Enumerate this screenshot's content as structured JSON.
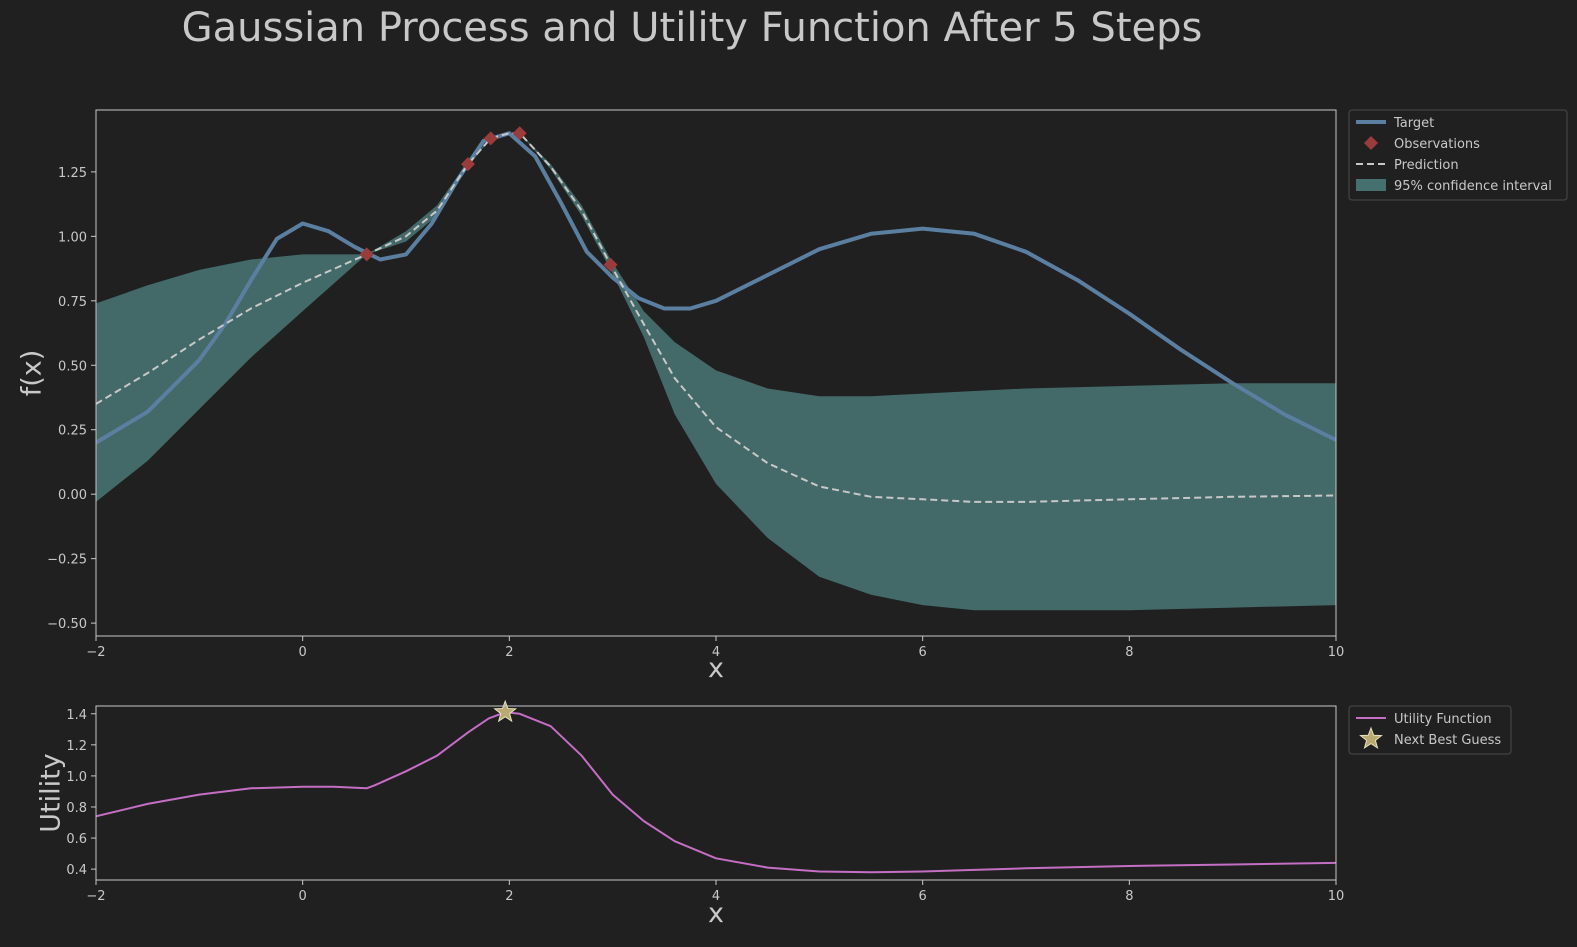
{
  "title": "Gaussian Process and Utility Function After 5 Steps",
  "colors": {
    "background": "#202020",
    "axes_edge": "#c8c8c8",
    "text": "#c8c8c8",
    "target": "#5b7fa0",
    "observation": "#9b3c3c",
    "prediction": "#c8c8c8",
    "confidence": "#467070",
    "utility": "#c46ec4",
    "next_guess": "#b8aa70"
  },
  "chart_data": [
    {
      "type": "line",
      "xlabel": "x",
      "ylabel": "f(x)",
      "xlim": [
        -2,
        10
      ],
      "ylim": [
        -0.55,
        1.49
      ],
      "xticks": [
        -2,
        0,
        2,
        4,
        6,
        8,
        10
      ],
      "yticks": [
        -0.5,
        -0.25,
        0.0,
        0.25,
        0.5,
        0.75,
        1.0,
        1.25
      ],
      "ytick_labels": [
        "−0.50",
        "−0.25",
        "0.00",
        "0.25",
        "0.50",
        "0.75",
        "1.00",
        "1.25"
      ],
      "legend_position": "outside-top-right",
      "series": [
        {
          "name": "Target",
          "kind": "line",
          "x": [
            -2,
            -1.5,
            -1,
            -0.75,
            -0.5,
            -0.25,
            0,
            0.25,
            0.5,
            0.75,
            1.0,
            1.25,
            1.5,
            1.75,
            2.0,
            2.25,
            2.5,
            2.75,
            3.0,
            3.25,
            3.5,
            3.75,
            4.0,
            4.5,
            5.0,
            5.5,
            6.0,
            6.5,
            7.0,
            7.5,
            8.0,
            8.5,
            9.0,
            9.5,
            10.0
          ],
          "y": [
            0.2,
            0.32,
            0.52,
            0.66,
            0.83,
            0.99,
            1.05,
            1.02,
            0.96,
            0.91,
            0.93,
            1.05,
            1.22,
            1.37,
            1.4,
            1.31,
            1.13,
            0.94,
            0.84,
            0.76,
            0.72,
            0.72,
            0.75,
            0.85,
            0.95,
            1.01,
            1.03,
            1.01,
            0.94,
            0.83,
            0.7,
            0.56,
            0.43,
            0.31,
            0.21
          ]
        },
        {
          "name": "Observations",
          "kind": "marker",
          "x": [
            0.62,
            1.6,
            1.82,
            2.1,
            2.98
          ],
          "y": [
            0.93,
            1.28,
            1.38,
            1.4,
            0.89
          ]
        },
        {
          "name": "Prediction",
          "kind": "dashed",
          "x": [
            -2,
            -1.5,
            -1,
            -0.5,
            0,
            0.62,
            1.0,
            1.3,
            1.6,
            1.82,
            2.0,
            2.1,
            2.4,
            2.7,
            2.98,
            3.3,
            3.6,
            4.0,
            4.5,
            5.0,
            5.5,
            6.0,
            6.5,
            7.0,
            8.0,
            9.0,
            10.0
          ],
          "y": [
            0.35,
            0.47,
            0.6,
            0.72,
            0.82,
            0.93,
            1.0,
            1.1,
            1.28,
            1.38,
            1.4,
            1.4,
            1.27,
            1.1,
            0.89,
            0.66,
            0.45,
            0.26,
            0.12,
            0.03,
            -0.01,
            -0.02,
            -0.03,
            -0.03,
            -0.02,
            -0.01,
            -0.005
          ]
        },
        {
          "name": "95% confidence interval",
          "kind": "band",
          "x": [
            -2,
            -1.5,
            -1,
            -0.5,
            0,
            0.62,
            1.0,
            1.3,
            1.6,
            1.82,
            2.0,
            2.1,
            2.4,
            2.7,
            2.98,
            3.3,
            3.6,
            4.0,
            4.5,
            5.0,
            5.5,
            6.0,
            6.5,
            7.0,
            8.0,
            9.0,
            10.0
          ],
          "upper": [
            0.74,
            0.81,
            0.87,
            0.91,
            0.93,
            0.93,
            1.02,
            1.12,
            1.29,
            1.38,
            1.4,
            1.4,
            1.28,
            1.12,
            0.91,
            0.71,
            0.59,
            0.48,
            0.41,
            0.38,
            0.38,
            0.39,
            0.4,
            0.41,
            0.42,
            0.43,
            0.43
          ],
          "lower": [
            -0.03,
            0.13,
            0.33,
            0.53,
            0.71,
            0.93,
            0.98,
            1.08,
            1.27,
            1.38,
            1.4,
            1.4,
            1.26,
            1.08,
            0.87,
            0.61,
            0.31,
            0.04,
            -0.17,
            -0.32,
            -0.39,
            -0.43,
            -0.45,
            -0.45,
            -0.45,
            -0.44,
            -0.43
          ]
        }
      ]
    },
    {
      "type": "line",
      "xlabel": "x",
      "ylabel": "Utility",
      "xlim": [
        -2,
        10
      ],
      "ylim": [
        0.33,
        1.45
      ],
      "xticks": [
        -2,
        0,
        2,
        4,
        6,
        8,
        10
      ],
      "yticks": [
        0.4,
        0.6,
        0.8,
        1.0,
        1.2,
        1.4
      ],
      "ytick_labels": [
        "0.4",
        "0.6",
        "0.8",
        "1.0",
        "1.2",
        "1.4"
      ],
      "legend_position": "outside-top-right",
      "series": [
        {
          "name": "Utility Function",
          "kind": "line",
          "x": [
            -2,
            -1.5,
            -1,
            -0.5,
            0,
            0.3,
            0.62,
            0.7,
            1.0,
            1.3,
            1.6,
            1.8,
            1.96,
            2.1,
            2.4,
            2.7,
            3.0,
            3.3,
            3.6,
            4.0,
            4.5,
            5.0,
            5.5,
            6.0,
            6.5,
            7.0,
            8.0,
            9.0,
            10.0
          ],
          "y": [
            0.74,
            0.82,
            0.88,
            0.92,
            0.93,
            0.93,
            0.92,
            0.94,
            1.03,
            1.13,
            1.28,
            1.37,
            1.41,
            1.4,
            1.32,
            1.13,
            0.88,
            0.71,
            0.58,
            0.47,
            0.41,
            0.385,
            0.38,
            0.385,
            0.395,
            0.405,
            0.42,
            0.43,
            0.44
          ]
        },
        {
          "name": "Next Best Guess",
          "kind": "star",
          "x": [
            1.96
          ],
          "y": [
            1.41
          ]
        }
      ]
    }
  ]
}
